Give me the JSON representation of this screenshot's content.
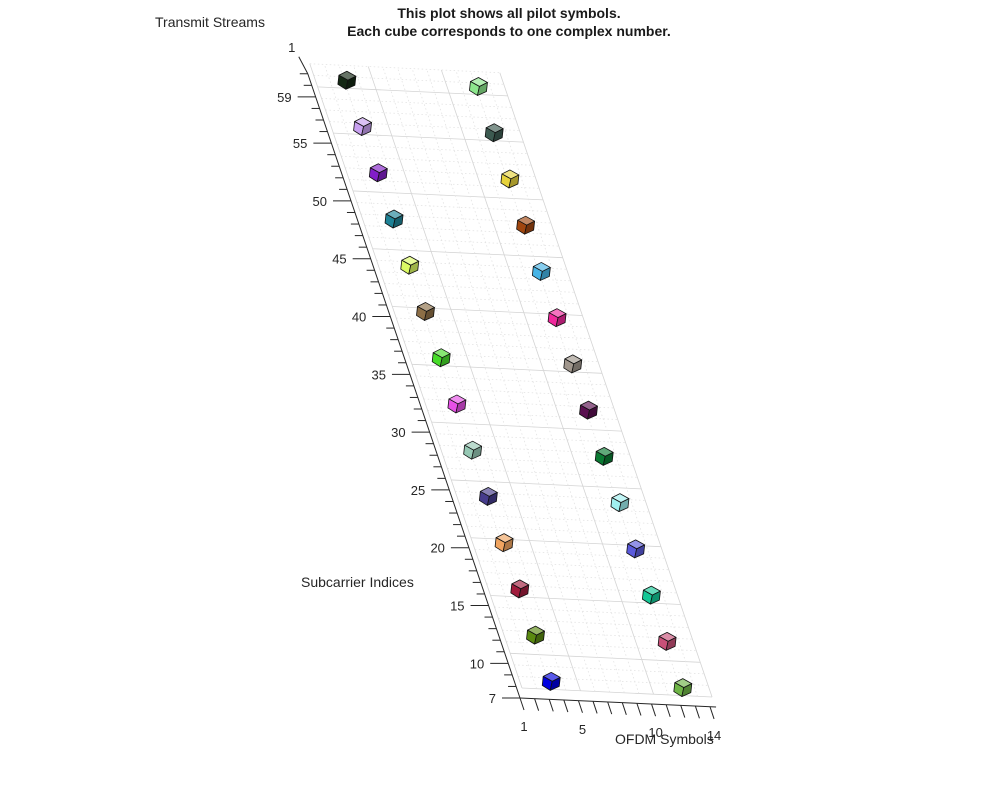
{
  "chart_data": {
    "type": "scatter3d",
    "title_lines": [
      "This plot shows all pilot symbols.",
      "Each cube corresponds to one complex number."
    ],
    "xlabel": "OFDM Symbols",
    "ylabel": "Subcarrier Indices",
    "zlabel": "Transmit Streams",
    "xlim": [
      1,
      14
    ],
    "ylim": [
      7,
      61
    ],
    "zlim": [
      1,
      1
    ],
    "x_ticks": [
      1,
      5,
      10,
      14
    ],
    "y_ticks": [
      7,
      10,
      15,
      20,
      25,
      30,
      35,
      40,
      45,
      50,
      55,
      59
    ],
    "z_ticks": [
      1
    ],
    "grid": true,
    "points": [
      {
        "x": 3,
        "y": 7,
        "z": 1,
        "color": "#0000e0"
      },
      {
        "x": 3,
        "y": 11,
        "z": 1,
        "color": "#5a8a10"
      },
      {
        "x": 3,
        "y": 15,
        "z": 1,
        "color": "#a01c3c"
      },
      {
        "x": 3,
        "y": 19,
        "z": 1,
        "color": "#f0a460"
      },
      {
        "x": 3,
        "y": 23,
        "z": 1,
        "color": "#463c8c"
      },
      {
        "x": 3,
        "y": 27,
        "z": 1,
        "color": "#96c8b4"
      },
      {
        "x": 3,
        "y": 31,
        "z": 1,
        "color": "#e650e6"
      },
      {
        "x": 3,
        "y": 35,
        "z": 1,
        "color": "#46dc28"
      },
      {
        "x": 3,
        "y": 39,
        "z": 1,
        "color": "#8c6e46"
      },
      {
        "x": 3,
        "y": 43,
        "z": 1,
        "color": "#dcfa64"
      },
      {
        "x": 3,
        "y": 47,
        "z": 1,
        "color": "#1e8296"
      },
      {
        "x": 3,
        "y": 51,
        "z": 1,
        "color": "#821ec8"
      },
      {
        "x": 3,
        "y": 55,
        "z": 1,
        "color": "#c8a0f0"
      },
      {
        "x": 3,
        "y": 59,
        "z": 1,
        "color": "#142814"
      },
      {
        "x": 12,
        "y": 7,
        "z": 1,
        "color": "#6eb446"
      },
      {
        "x": 12,
        "y": 11,
        "z": 1,
        "color": "#c85078"
      },
      {
        "x": 12,
        "y": 15,
        "z": 1,
        "color": "#14c896"
      },
      {
        "x": 12,
        "y": 19,
        "z": 1,
        "color": "#5a5adc"
      },
      {
        "x": 12,
        "y": 23,
        "z": 1,
        "color": "#a0f0f0"
      },
      {
        "x": 12,
        "y": 27,
        "z": 1,
        "color": "#0a7a32"
      },
      {
        "x": 12,
        "y": 31,
        "z": 1,
        "color": "#5a0f50"
      },
      {
        "x": 12,
        "y": 35,
        "z": 1,
        "color": "#a0968c"
      },
      {
        "x": 12,
        "y": 39,
        "z": 1,
        "color": "#f0289c"
      },
      {
        "x": 12,
        "y": 43,
        "z": 1,
        "color": "#46b4e6"
      },
      {
        "x": 12,
        "y": 47,
        "z": 1,
        "color": "#a0460f"
      },
      {
        "x": 12,
        "y": 51,
        "z": 1,
        "color": "#e6d23c"
      },
      {
        "x": 12,
        "y": 55,
        "z": 1,
        "color": "#3c5a50"
      },
      {
        "x": 12,
        "y": 59,
        "z": 1,
        "color": "#8ce68c"
      }
    ]
  }
}
